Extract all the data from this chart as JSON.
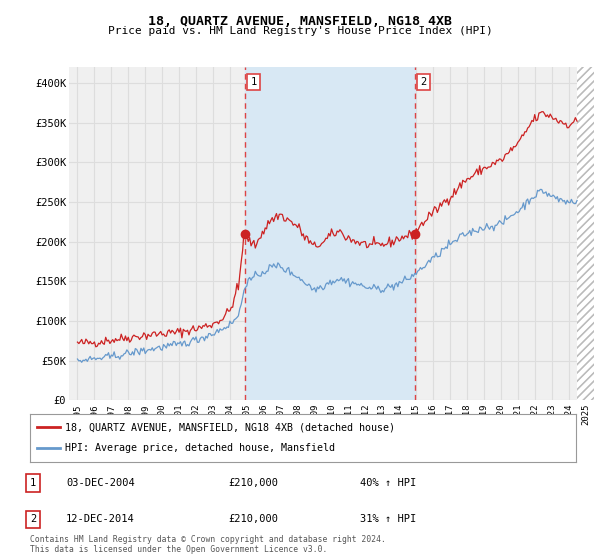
{
  "title": "18, QUARTZ AVENUE, MANSFIELD, NG18 4XB",
  "subtitle": "Price paid vs. HM Land Registry's House Price Index (HPI)",
  "background_color": "#ffffff",
  "plot_background": "#f0f0f0",
  "grid_color": "#dddddd",
  "red_line_color": "#cc2222",
  "blue_line_color": "#6699cc",
  "dashed_line_color": "#dd4444",
  "shade_color": "#d8e8f4",
  "hatch_color": "#cccccc",
  "marker1_x": 2004.92,
  "marker1_y": 210000,
  "marker2_x": 2014.95,
  "marker2_y": 210000,
  "ylim": [
    0,
    420000
  ],
  "yticks": [
    0,
    50000,
    100000,
    150000,
    200000,
    250000,
    300000,
    350000,
    400000
  ],
  "ytick_labels": [
    "£0",
    "£50K",
    "£100K",
    "£150K",
    "£200K",
    "£250K",
    "£300K",
    "£350K",
    "£400K"
  ],
  "xlim_start": 1994.5,
  "xlim_end": 2025.5,
  "hatch_start": 2024.5,
  "xtick_years": [
    1995,
    1996,
    1997,
    1998,
    1999,
    2000,
    2001,
    2002,
    2003,
    2004,
    2005,
    2006,
    2007,
    2008,
    2009,
    2010,
    2011,
    2012,
    2013,
    2014,
    2015,
    2016,
    2017,
    2018,
    2019,
    2020,
    2021,
    2022,
    2023,
    2024,
    2025
  ],
  "legend_items": [
    {
      "label": "18, QUARTZ AVENUE, MANSFIELD, NG18 4XB (detached house)",
      "color": "#cc2222"
    },
    {
      "label": "HPI: Average price, detached house, Mansfield",
      "color": "#6699cc"
    }
  ],
  "table_rows": [
    {
      "num": "1",
      "date": "03-DEC-2004",
      "price": "£210,000",
      "change": "40% ↑ HPI"
    },
    {
      "num": "2",
      "date": "12-DEC-2014",
      "price": "£210,000",
      "change": "31% ↑ HPI"
    }
  ],
  "footnote": "Contains HM Land Registry data © Crown copyright and database right 2024.\nThis data is licensed under the Open Government Licence v3.0."
}
